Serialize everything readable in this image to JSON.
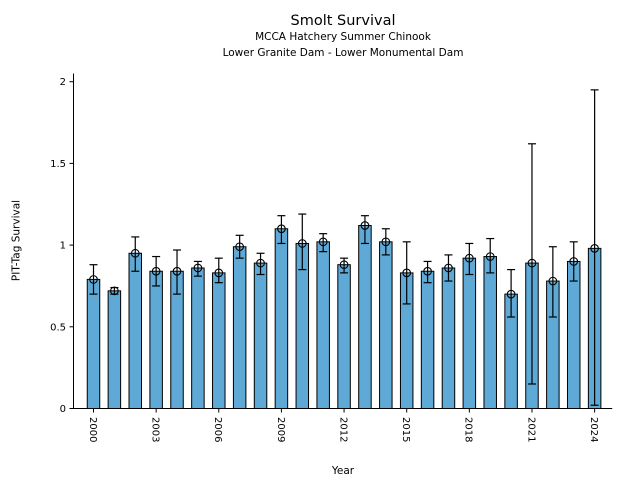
{
  "figure": {
    "title": "Smolt Survival",
    "subtitle1": "MCCA Hatchery Summer Chinook",
    "subtitle2": "Lower Granite Dam - Lower Monumental Dam"
  },
  "colors": {
    "background": "#ffffff",
    "bar_fill": "#5ea9d6",
    "bar_edge": "#000000",
    "error_bar": "#000000",
    "text": "#000000"
  },
  "chart_data": {
    "type": "bar",
    "title": "Smolt Survival",
    "subtitles": [
      "MCCA Hatchery Summer Chinook",
      "Lower Granite Dam - Lower Monumental Dam"
    ],
    "xlabel": "Year",
    "ylabel": "PIT-Tag Survival",
    "ylim": [
      0,
      2.05
    ],
    "xlim": [
      1999.05,
      2024.85
    ],
    "yticks": [
      0,
      0.5,
      1,
      1.5,
      2
    ],
    "ytick_labels": [
      "0",
      "0.5",
      "1",
      "1.5",
      "2"
    ],
    "xticks": [
      2000,
      2003,
      2006,
      2009,
      2012,
      2015,
      2018,
      2021,
      2024
    ],
    "grid": false,
    "legend": null,
    "error_bars": true,
    "marker": "open-circle",
    "points": [
      {
        "year": 2000,
        "value": 0.79,
        "ci_low": 0.7,
        "ci_high": 0.88
      },
      {
        "year": 2001,
        "value": 0.72,
        "ci_low": 0.7,
        "ci_high": 0.74
      },
      {
        "year": 2002,
        "value": 0.95,
        "ci_low": 0.84,
        "ci_high": 1.05
      },
      {
        "year": 2003,
        "value": 0.84,
        "ci_low": 0.75,
        "ci_high": 0.93
      },
      {
        "year": 2004,
        "value": 0.84,
        "ci_low": 0.7,
        "ci_high": 0.97
      },
      {
        "year": 2005,
        "value": 0.86,
        "ci_low": 0.81,
        "ci_high": 0.9
      },
      {
        "year": 2006,
        "value": 0.83,
        "ci_low": 0.77,
        "ci_high": 0.92
      },
      {
        "year": 2007,
        "value": 0.99,
        "ci_low": 0.92,
        "ci_high": 1.06
      },
      {
        "year": 2008,
        "value": 0.89,
        "ci_low": 0.82,
        "ci_high": 0.95
      },
      {
        "year": 2009,
        "value": 1.1,
        "ci_low": 1.01,
        "ci_high": 1.18
      },
      {
        "year": 2010,
        "value": 1.01,
        "ci_low": 0.85,
        "ci_high": 1.19
      },
      {
        "year": 2011,
        "value": 1.02,
        "ci_low": 0.96,
        "ci_high": 1.07
      },
      {
        "year": 2012,
        "value": 0.88,
        "ci_low": 0.83,
        "ci_high": 0.92
      },
      {
        "year": 2013,
        "value": 1.12,
        "ci_low": 1.01,
        "ci_high": 1.18
      },
      {
        "year": 2014,
        "value": 1.02,
        "ci_low": 0.94,
        "ci_high": 1.1
      },
      {
        "year": 2015,
        "value": 0.83,
        "ci_low": 0.64,
        "ci_high": 1.02
      },
      {
        "year": 2016,
        "value": 0.84,
        "ci_low": 0.77,
        "ci_high": 0.9
      },
      {
        "year": 2017,
        "value": 0.86,
        "ci_low": 0.78,
        "ci_high": 0.94
      },
      {
        "year": 2018,
        "value": 0.92,
        "ci_low": 0.82,
        "ci_high": 1.01
      },
      {
        "year": 2019,
        "value": 0.93,
        "ci_low": 0.83,
        "ci_high": 1.04
      },
      {
        "year": 2020,
        "value": 0.7,
        "ci_low": 0.56,
        "ci_high": 0.85
      },
      {
        "year": 2021,
        "value": 0.89,
        "ci_low": 0.15,
        "ci_high": 1.62
      },
      {
        "year": 2022,
        "value": 0.78,
        "ci_low": 0.56,
        "ci_high": 0.99
      },
      {
        "year": 2023,
        "value": 0.9,
        "ci_low": 0.78,
        "ci_high": 1.02
      },
      {
        "year": 2024,
        "value": 0.98,
        "ci_low": 0.02,
        "ci_high": 1.95
      }
    ]
  }
}
